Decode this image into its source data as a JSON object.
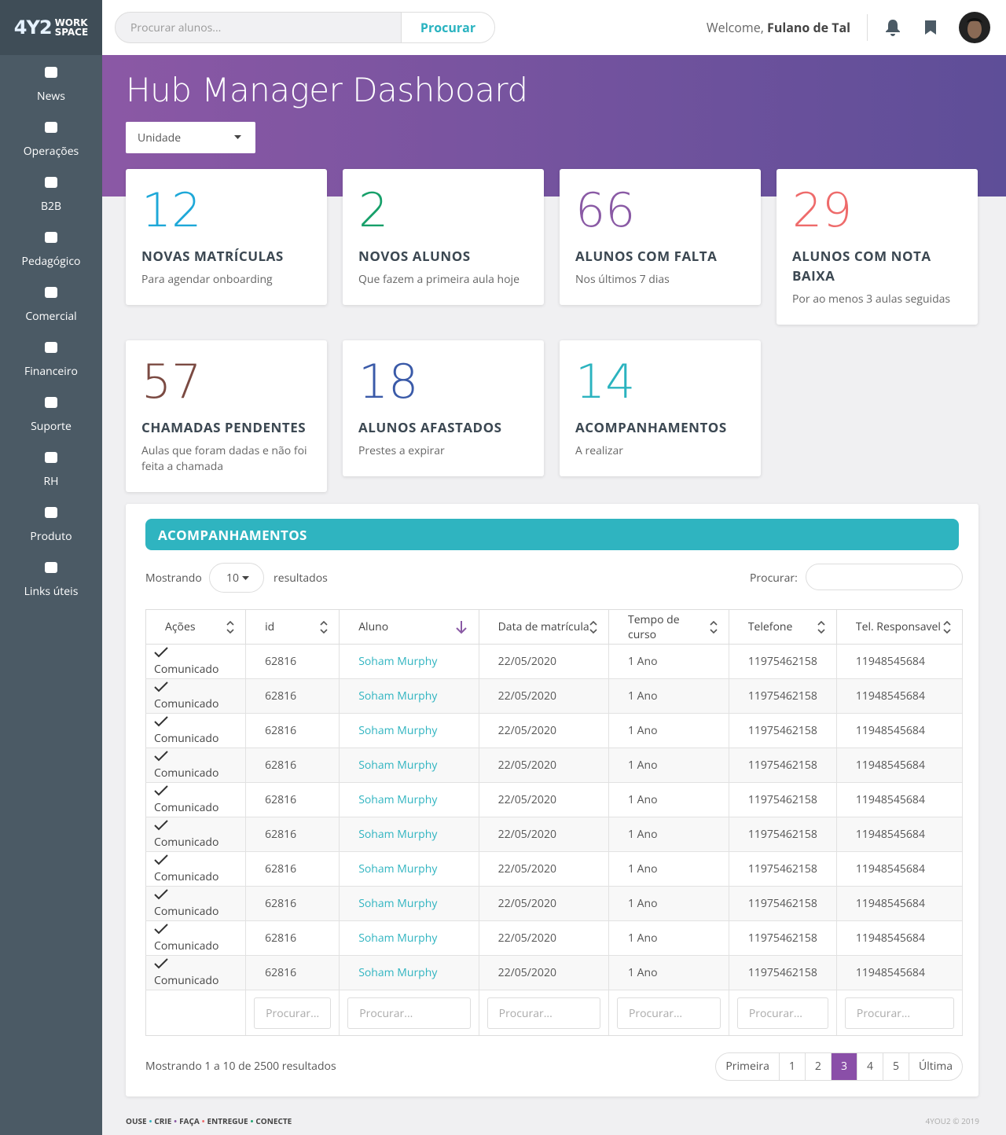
{
  "logo": {
    "mark": "4Y2",
    "word1": "WORK",
    "word2": "SPACE"
  },
  "search": {
    "placeholder": "Procurar alunos...",
    "button": "Procurar"
  },
  "user": {
    "welcome": "Welcome,",
    "name": "Fulano de Tal"
  },
  "nav": [
    "News",
    "Operações",
    "B2B",
    "Pedagógico",
    "Comercial",
    "Financeiro",
    "Suporte",
    "RH",
    "Produto",
    "Links úteis"
  ],
  "header": {
    "title": "Hub Manager Dashboard",
    "select": "Unidade"
  },
  "cards": [
    {
      "value": "12",
      "title": "NOVAS MATRÍCULAS",
      "subtitle": "Para agendar onboarding",
      "color": "#1ea8d8"
    },
    {
      "value": "2",
      "title": "NOVOS ALUNOS",
      "subtitle": "Que fazem a primeira aula hoje",
      "color": "#17a06a"
    },
    {
      "value": "66",
      "title": "ALUNOS COM FALTA",
      "subtitle": "Nos últimos 7 dias",
      "color": "#8a5aa5"
    },
    {
      "value": "29",
      "title": "ALUNOS COM NOTA BAIXA",
      "subtitle": "Por ao menos 3 aulas seguidas",
      "color": "#ee6b6b"
    },
    {
      "value": "57",
      "title": "CHAMADAS PENDENTES",
      "subtitle": "Aulas que foram dadas e não foi feita a chamada",
      "color": "#7b4a42"
    },
    {
      "value": "18",
      "title": "ALUNOS AFASTADOS",
      "subtitle": "Prestes a expirar",
      "color": "#3a5aa8"
    },
    {
      "value": "14",
      "title": "ACOMPANHAMENTOS",
      "subtitle": "A realizar",
      "color": "#2bb3bf"
    }
  ],
  "table": {
    "title": "ACOMPANHAMENTOS",
    "length_prefix": "Mostrando",
    "length": "10",
    "length_suffix": "resultados",
    "search_label": "Procurar:",
    "columns": [
      "Ações",
      "id",
      "Aluno",
      "Data de matrícula",
      "Tempo de curso",
      "Telefone",
      "Tel. Responsavel"
    ],
    "rows": [
      [
        "Comunicado",
        "62816",
        "Soham Murphy",
        "22/05/2020",
        "1 Ano",
        "11975462158",
        "11948545684"
      ],
      [
        "Comunicado",
        "62816",
        "Soham Murphy",
        "22/05/2020",
        "1 Ano",
        "11975462158",
        "11948545684"
      ],
      [
        "Comunicado",
        "62816",
        "Soham Murphy",
        "22/05/2020",
        "1 Ano",
        "11975462158",
        "11948545684"
      ],
      [
        "Comunicado",
        "62816",
        "Soham Murphy",
        "22/05/2020",
        "1 Ano",
        "11975462158",
        "11948545684"
      ],
      [
        "Comunicado",
        "62816",
        "Soham Murphy",
        "22/05/2020",
        "1 Ano",
        "11975462158",
        "11948545684"
      ],
      [
        "Comunicado",
        "62816",
        "Soham Murphy",
        "22/05/2020",
        "1 Ano",
        "11975462158",
        "11948545684"
      ],
      [
        "Comunicado",
        "62816",
        "Soham Murphy",
        "22/05/2020",
        "1 Ano",
        "11975462158",
        "11948545684"
      ],
      [
        "Comunicado",
        "62816",
        "Soham Murphy",
        "22/05/2020",
        "1 Ano",
        "11975462158",
        "11948545684"
      ],
      [
        "Comunicado",
        "62816",
        "Soham Murphy",
        "22/05/2020",
        "1 Ano",
        "11975462158",
        "11948545684"
      ],
      [
        "Comunicado",
        "62816",
        "Soham Murphy",
        "22/05/2020",
        "1 Ano",
        "11975462158",
        "11948545684"
      ]
    ],
    "filter_placeholder": "Procurar...",
    "info": "Mostrando 1 a 10 de 2500 resultados",
    "pagination": [
      "Primeira",
      "1",
      "2",
      "3",
      "4",
      "5",
      "Última"
    ],
    "active": 3
  },
  "footer": {
    "tagline": [
      "OUSE",
      "CRIE",
      "FAÇA",
      "ENTREGUE",
      "CONECTE"
    ],
    "copyright": "4YOU2 © 2019"
  }
}
